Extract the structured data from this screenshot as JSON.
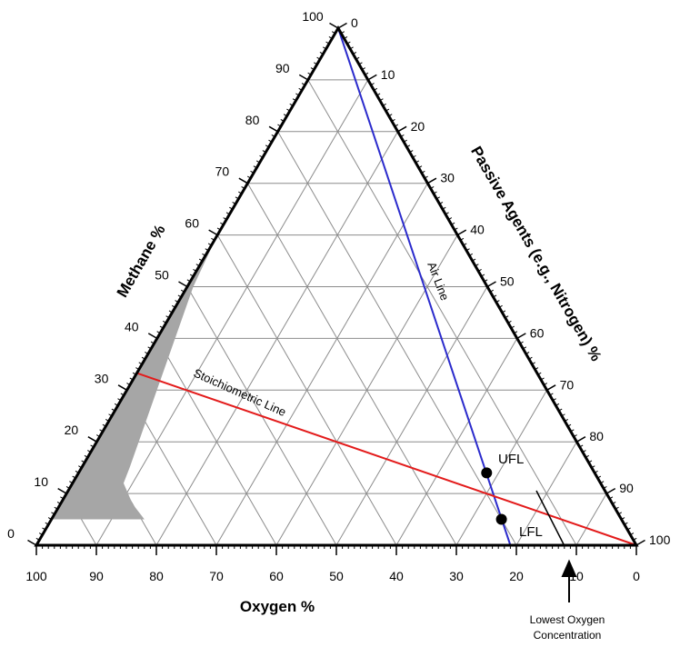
{
  "axes": {
    "methane": {
      "title": "Methane %",
      "ticks": [
        "0",
        "10",
        "20",
        "30",
        "40",
        "50",
        "60",
        "70",
        "80",
        "90",
        "100"
      ]
    },
    "oxygen": {
      "title": "Oxygen %",
      "ticks": [
        "100",
        "90",
        "80",
        "70",
        "60",
        "50",
        "40",
        "30",
        "20",
        "10",
        "0"
      ]
    },
    "passive": {
      "title": "Passive Agents (e.g., Nitrogen) %",
      "ticks": [
        "0",
        "10",
        "20",
        "30",
        "40",
        "50",
        "60",
        "70",
        "80",
        "90",
        "100"
      ]
    }
  },
  "labels": {
    "air_line": "Air Line",
    "stoichiometric_line": "Stoichiometric Line",
    "ufl": "UFL",
    "lfl": "LFL",
    "loc_line1": "Lowest Oxygen",
    "loc_line2": "Concentration"
  },
  "colors": {
    "flammable_region": "#a6a6a6",
    "air_line": "#2b2bcc",
    "stoichiometric_line": "#e31b1b",
    "grid": "#8c8c8c",
    "frame": "#000000"
  },
  "data": {
    "flammable_region_methane_oxygen": [
      [
        60,
        40
      ],
      [
        50,
        49
      ],
      [
        40,
        57
      ],
      [
        30,
        65
      ],
      [
        20,
        73
      ],
      [
        15,
        77
      ],
      [
        12,
        79.5
      ],
      [
        8,
        80
      ],
      [
        5,
        79.5
      ],
      [
        5,
        95
      ],
      [
        10,
        90
      ],
      [
        20,
        80
      ],
      [
        30,
        70
      ],
      [
        40,
        60
      ],
      [
        50,
        50
      ],
      [
        60,
        40
      ]
    ],
    "air_line": {
      "start": {
        "methane": 100,
        "oxygen": 0
      },
      "end": {
        "methane": 0,
        "oxygen": 21
      }
    },
    "stoichiometric_line": {
      "start": {
        "methane": 33.3,
        "oxygen": 66.7
      },
      "end": {
        "methane": 0,
        "oxygen": 0
      }
    },
    "ufl_point": {
      "methane": 14,
      "oxygen": 18
    },
    "lfl_point": {
      "methane": 5,
      "oxygen": 20
    },
    "lowest_oxygen_concentration": 12
  }
}
